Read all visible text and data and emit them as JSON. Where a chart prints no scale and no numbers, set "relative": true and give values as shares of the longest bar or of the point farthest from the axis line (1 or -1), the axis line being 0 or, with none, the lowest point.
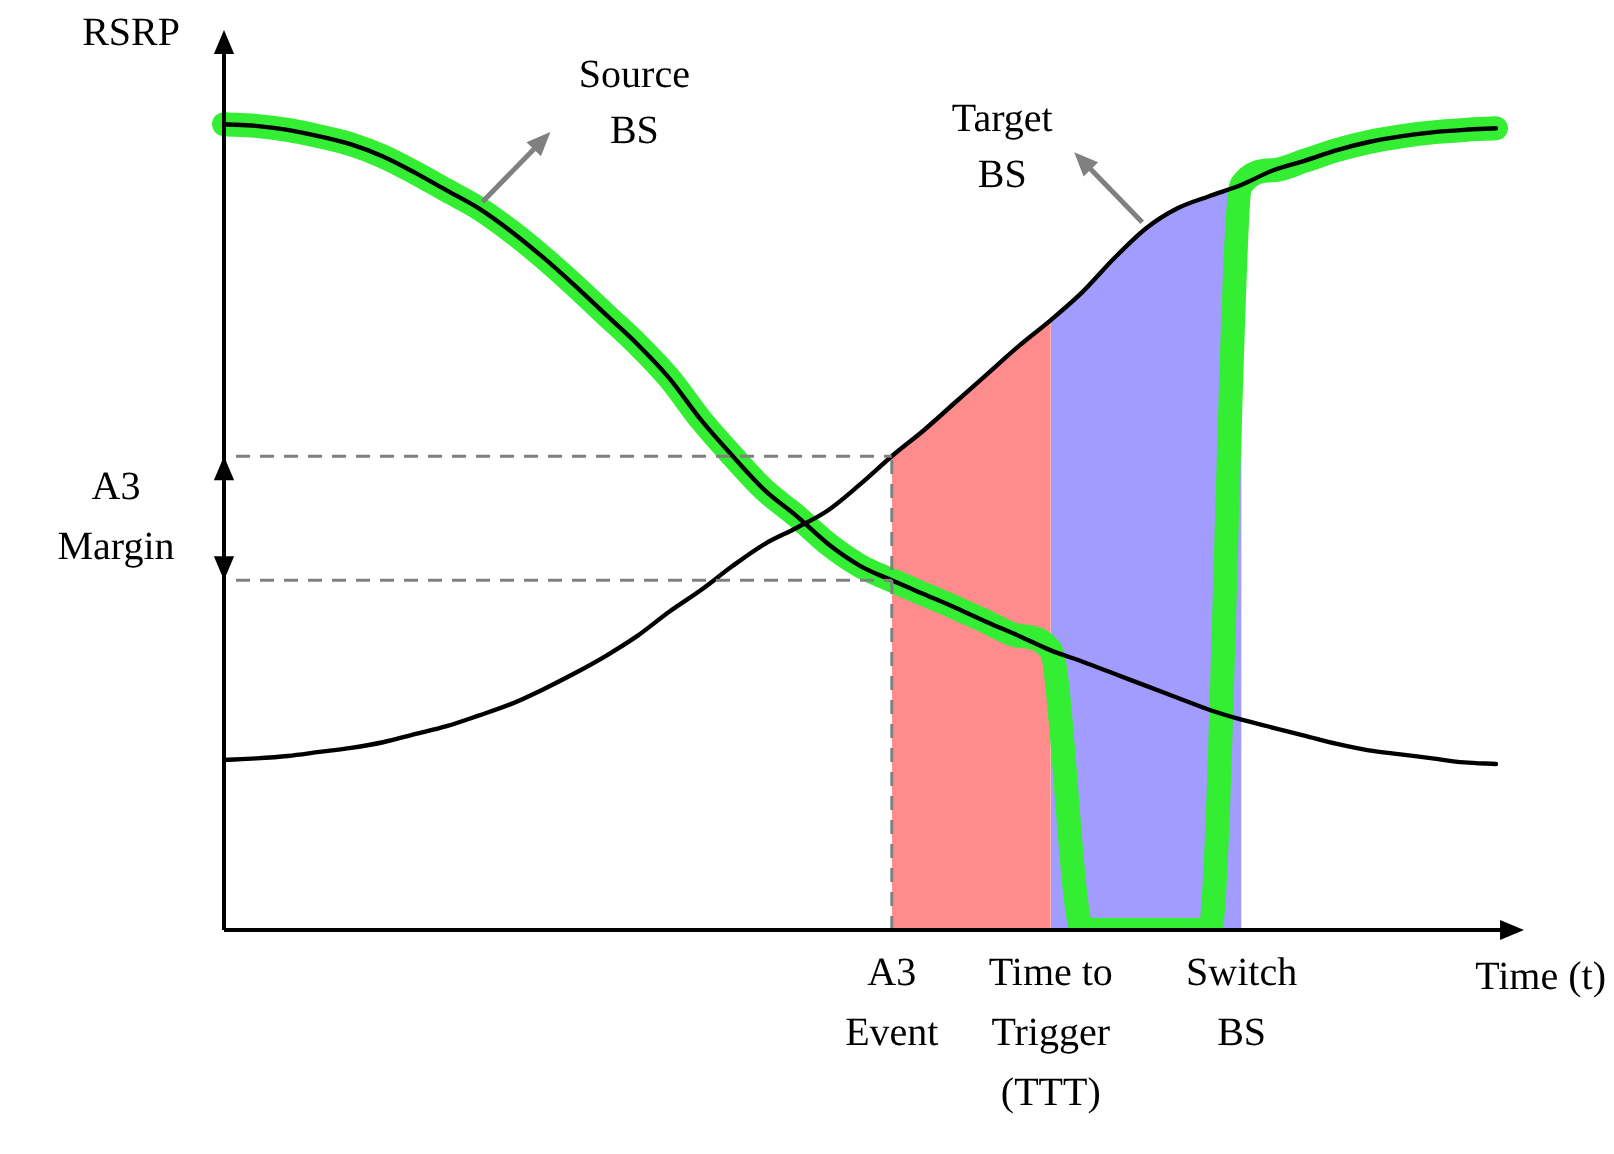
{
  "chart_data": {
    "type": "line",
    "relative": true,
    "ylabel": "RSRP",
    "xlabel": "Time (t)",
    "marker": "none",
    "categories": [
      null,
      null,
      null,
      null,
      null,
      null,
      null,
      null,
      null,
      null,
      null,
      null,
      null,
      null,
      null,
      null,
      null,
      null,
      null,
      null,
      null,
      "A3 Event",
      null,
      null,
      null,
      null,
      "Time to Trigger (TTT)",
      null,
      null,
      null,
      null,
      null,
      "Switch BS",
      null,
      null,
      null,
      null,
      null,
      null,
      null,
      null
    ],
    "series": [
      {
        "type": "area",
        "color": "#ff8c8c",
        "values": [
          null,
          null,
          null,
          null,
          null,
          null,
          null,
          null,
          null,
          null,
          null,
          null,
          null,
          null,
          null,
          null,
          null,
          null,
          null,
          null,
          null,
          0.588,
          0.62,
          0.655,
          0.69,
          0.725,
          0.757,
          null,
          null,
          null,
          null,
          null,
          null,
          null,
          null,
          null,
          null,
          null,
          null,
          null,
          null
        ]
      },
      {
        "type": "area",
        "color": "#a39cff",
        "values": [
          null,
          null,
          null,
          null,
          null,
          null,
          null,
          null,
          null,
          null,
          null,
          null,
          null,
          null,
          null,
          null,
          null,
          null,
          null,
          null,
          null,
          null,
          null,
          null,
          null,
          null,
          0.757,
          0.792,
          0.834,
          0.871,
          0.896,
          0.911,
          0.925,
          null,
          null,
          null,
          null,
          null,
          null,
          null,
          null
        ]
      },
      {
        "type": "line",
        "color": "#33ee33",
        "values": [
          1,
          0.998,
          0.993,
          0.985,
          0.975,
          0.96,
          0.94,
          0.918,
          0.896,
          0.868,
          0.836,
          0.801,
          0.764,
          0.727,
          0.685,
          0.633,
          0.588,
          0.546,
          0.514,
          0.479,
          0.452,
          0.434,
          0.417,
          0.4,
          0.382,
          0.365,
          0.347,
          0,
          0,
          0,
          0,
          0,
          0.925,
          0.943,
          0.955,
          0.968,
          0.978,
          0.985,
          0.99,
          0.993,
          0.995
        ]
      },
      {
        "type": "line",
        "name": "Source BS",
        "color": "#000000",
        "values": [
          1,
          0.998,
          0.993,
          0.985,
          0.975,
          0.96,
          0.94,
          0.918,
          0.896,
          0.868,
          0.836,
          0.801,
          0.764,
          0.727,
          0.685,
          0.633,
          0.588,
          0.546,
          0.514,
          0.479,
          0.452,
          0.434,
          0.417,
          0.4,
          0.382,
          0.365,
          0.347,
          0.333,
          0.318,
          0.303,
          0.288,
          0.273,
          0.261,
          0.251,
          0.241,
          0.231,
          0.223,
          0.218,
          0.213,
          0.208,
          0.206
        ]
      },
      {
        "type": "line",
        "name": "Target BS",
        "color": "#000000",
        "values": [
          0.211,
          0.213,
          0.216,
          0.221,
          0.226,
          0.233,
          0.243,
          0.253,
          0.266,
          0.28,
          0.298,
          0.318,
          0.34,
          0.365,
          0.395,
          0.422,
          0.452,
          0.479,
          0.499,
          0.521,
          0.553,
          0.588,
          0.62,
          0.655,
          0.69,
          0.725,
          0.757,
          0.792,
          0.834,
          0.871,
          0.896,
          0.911,
          0.925,
          0.943,
          0.955,
          0.968,
          0.978,
          0.985,
          0.99,
          0.993,
          0.995
        ]
      }
    ],
    "ref_lines": [
      {
        "axis": "x",
        "value": "A3 Event",
        "line_style": "dashed",
        "color": "#808080"
      },
      {
        "axis": "y",
        "value": 0.588,
        "line_style": "dashed",
        "color": "#808080"
      },
      {
        "axis": "y",
        "value": 0.434,
        "line_style": "dashed",
        "color": "#808080"
      }
    ],
    "annotations": [
      "A3 Margin"
    ]
  }
}
